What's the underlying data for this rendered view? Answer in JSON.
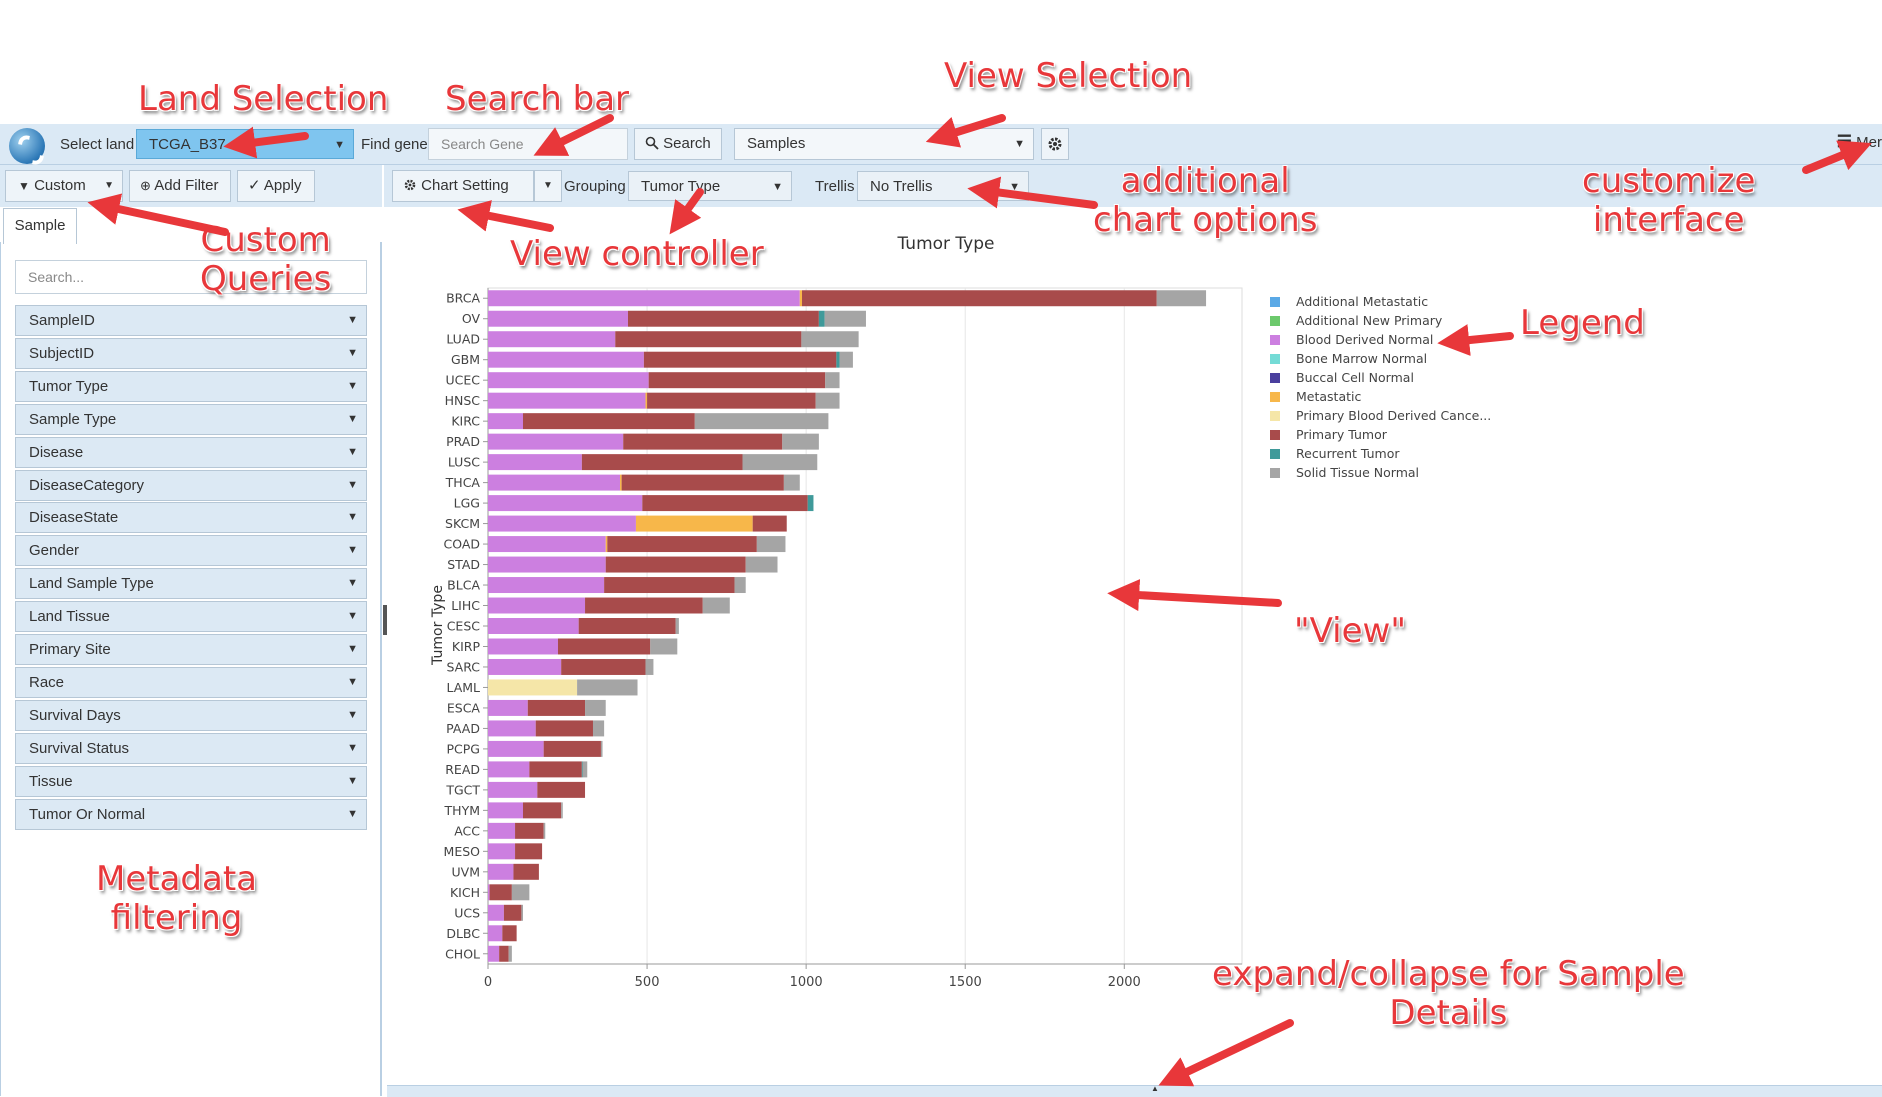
{
  "topbar": {
    "select_land_label": "Select land",
    "land_value": "TCGA_B37",
    "find_gene_label": "Find gene",
    "search_placeholder": "Search Gene",
    "search_button": "Search",
    "view_value": "Samples",
    "menu_label": "Mer"
  },
  "left_toolbar": {
    "custom": "Custom",
    "add_filter": "Add Filter",
    "apply": "Apply"
  },
  "sidebar": {
    "tab": "Sample",
    "search_placeholder": "Search...",
    "filters": [
      "SampleID",
      "SubjectID",
      "Tumor Type",
      "Sample Type",
      "Disease",
      "DiseaseCategory",
      "DiseaseState",
      "Gender",
      "Land Sample Type",
      "Land Tissue",
      "Primary Site",
      "Race",
      "Survival Days",
      "Survival Status",
      "Tissue",
      "Tumor Or Normal"
    ]
  },
  "chart_toolbar": {
    "chart_setting": "Chart Setting",
    "grouping_label": "Grouping",
    "grouping_value": "Tumor Type",
    "trellis_label": "Trellis",
    "trellis_value": "No Trellis"
  },
  "annotations": {
    "land_selection": "Land Selection",
    "search_bar": "Search bar",
    "view_selection": "View Selection",
    "additional_chart_options": [
      "additional",
      "chart options"
    ],
    "customize_interface": [
      "customize",
      "interface"
    ],
    "custom_queries": [
      "Custom",
      "Queries"
    ],
    "view_controller": "View controller",
    "legend": "Legend",
    "view": "\"View\"",
    "metadata_filtering": [
      "Metadata",
      "filtering"
    ],
    "expand_collapse": [
      "expand/collapse for Sample",
      "Details"
    ]
  },
  "colors": {
    "Additional Metastatic": "#5aa9e6",
    "Additional New Primary": "#6cc96c",
    "Blood Derived Normal": "#cc7fe0",
    "Bone Marrow Normal": "#74dbd6",
    "Buccal Cell Normal": "#4a3f9e",
    "Metastatic": "#f7b74a",
    "Primary Blood Derived Cancer": "#f5e6a8",
    "Primary Tumor": "#a84b4b",
    "Recurrent Tumor": "#3f9a9a",
    "Solid Tissue Normal": "#a5a5a5"
  },
  "chart_data": {
    "type": "bar",
    "orientation": "horizontal",
    "stacked": true,
    "title": "Tumor Type",
    "ylabel": "Tumor Type",
    "xlabel": "",
    "xlim": [
      0,
      2370
    ],
    "xticks": [
      0,
      500,
      1000,
      1500,
      2000
    ],
    "grid": true,
    "legend_position": "right",
    "legend": [
      "Additional Metastatic",
      "Additional New Primary",
      "Blood Derived Normal",
      "Bone Marrow Normal",
      "Buccal Cell Normal",
      "Metastatic",
      "Primary Blood Derived Cance...",
      "Primary Tumor",
      "Recurrent Tumor",
      "Solid Tissue Normal"
    ],
    "categories": [
      "BRCA",
      "OV",
      "LUAD",
      "GBM",
      "UCEC",
      "HNSC",
      "KIRC",
      "PRAD",
      "LUSC",
      "THCA",
      "LGG",
      "SKCM",
      "COAD",
      "STAD",
      "BLCA",
      "LIHC",
      "CESC",
      "KIRP",
      "SARC",
      "LAML",
      "ESCA",
      "PAAD",
      "PCPG",
      "READ",
      "TGCT",
      "THYM",
      "ACC",
      "MESO",
      "UVM",
      "KICH",
      "UCS",
      "DLBC",
      "CHOL"
    ],
    "series": [
      {
        "name": "Blood Derived Normal",
        "values": [
          980,
          440,
          400,
          490,
          505,
          495,
          110,
          425,
          295,
          415,
          485,
          465,
          370,
          370,
          365,
          305,
          285,
          220,
          230,
          0,
          125,
          150,
          175,
          130,
          155,
          110,
          85,
          85,
          80,
          5,
          50,
          45,
          35
        ]
      },
      {
        "name": "Metastatic",
        "values": [
          7,
          0,
          0,
          0,
          0,
          5,
          0,
          0,
          0,
          5,
          0,
          367,
          5,
          0,
          0,
          0,
          0,
          0,
          0,
          0,
          0,
          0,
          0,
          0,
          0,
          0,
          0,
          0,
          0,
          0,
          0,
          0,
          0
        ]
      },
      {
        "name": "Primary Tumor",
        "values": [
          1115,
          600,
          585,
          605,
          555,
          530,
          540,
          500,
          505,
          510,
          520,
          107,
          470,
          440,
          410,
          370,
          305,
          290,
          265,
          0,
          180,
          180,
          180,
          165,
          150,
          120,
          90,
          85,
          80,
          70,
          55,
          45,
          30
        ]
      },
      {
        "name": "Primary Blood Derived Cancer",
        "values": [
          0,
          0,
          0,
          0,
          0,
          0,
          0,
          0,
          0,
          0,
          0,
          0,
          0,
          0,
          0,
          0,
          0,
          0,
          0,
          280,
          0,
          0,
          0,
          0,
          0,
          0,
          0,
          0,
          0,
          0,
          0,
          0,
          0
        ]
      },
      {
        "name": "Recurrent Tumor",
        "values": [
          0,
          18,
          0,
          10,
          0,
          0,
          0,
          0,
          0,
          0,
          18,
          0,
          0,
          0,
          0,
          0,
          0,
          0,
          0,
          0,
          0,
          0,
          0,
          2,
          0,
          0,
          0,
          0,
          0,
          0,
          0,
          0,
          0
        ]
      },
      {
        "name": "Solid Tissue Normal",
        "values": [
          155,
          130,
          180,
          42,
          45,
          75,
          420,
          115,
          235,
          50,
          0,
          0,
          90,
          100,
          35,
          85,
          10,
          85,
          25,
          190,
          65,
          35,
          5,
          15,
          0,
          5,
          5,
          0,
          0,
          55,
          5,
          0,
          10
        ]
      }
    ]
  }
}
